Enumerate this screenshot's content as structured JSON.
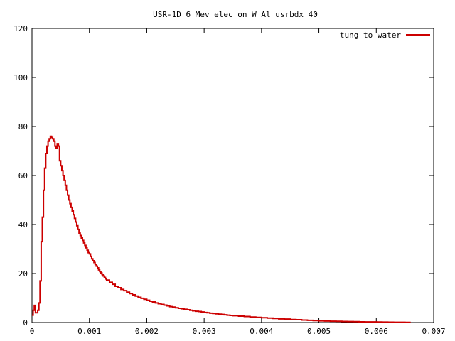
{
  "chart_data": {
    "type": "line",
    "title": "USR-1D 6 Mev elec on W Al usrbdx 40",
    "xlabel": "",
    "ylabel": "",
    "xlim": [
      0,
      0.007
    ],
    "ylim": [
      0,
      120
    ],
    "xticks": [
      0,
      0.001,
      0.002,
      0.003,
      0.004,
      0.005,
      0.006,
      0.007
    ],
    "xtick_labels": [
      "0",
      "0.001",
      "0.002",
      "0.003",
      "0.004",
      "0.005",
      "0.006",
      "0.007"
    ],
    "yticks": [
      0,
      20,
      40,
      60,
      80,
      100,
      120
    ],
    "ytick_labels": [
      "0",
      "20",
      "40",
      "60",
      "80",
      "100",
      "120"
    ],
    "grid": false,
    "legend_position": "top-right",
    "step": true,
    "series": [
      {
        "name": "tung to water",
        "color": "#cc0000",
        "points": [
          [
            0.0,
            3
          ],
          [
            2e-05,
            5
          ],
          [
            4e-05,
            7
          ],
          [
            6e-05,
            4
          ],
          [
            8e-05,
            4
          ],
          [
            0.0001,
            5
          ],
          [
            0.00012,
            8
          ],
          [
            0.00014,
            17
          ],
          [
            0.00016,
            33
          ],
          [
            0.00018,
            43
          ],
          [
            0.0002,
            54
          ],
          [
            0.00022,
            63
          ],
          [
            0.00024,
            69
          ],
          [
            0.00026,
            72
          ],
          [
            0.00028,
            74
          ],
          [
            0.0003,
            75
          ],
          [
            0.00032,
            76
          ],
          [
            0.00034,
            75.5
          ],
          [
            0.00036,
            75
          ],
          [
            0.00038,
            74
          ],
          [
            0.0004,
            72
          ],
          [
            0.00042,
            71
          ],
          [
            0.00044,
            73
          ],
          [
            0.00046,
            72
          ],
          [
            0.00048,
            66
          ],
          [
            0.0005,
            64
          ],
          [
            0.00052,
            62
          ],
          [
            0.00054,
            60
          ],
          [
            0.00056,
            58
          ],
          [
            0.00058,
            56
          ],
          [
            0.0006,
            54
          ],
          [
            0.00062,
            52
          ],
          [
            0.00064,
            50
          ],
          [
            0.00066,
            48.5
          ],
          [
            0.00068,
            47
          ],
          [
            0.0007,
            45.5
          ],
          [
            0.00072,
            44
          ],
          [
            0.00074,
            42.5
          ],
          [
            0.00076,
            41
          ],
          [
            0.00078,
            39.5
          ],
          [
            0.0008,
            38
          ],
          [
            0.00082,
            36.5
          ],
          [
            0.00084,
            35.5
          ],
          [
            0.00086,
            34.5
          ],
          [
            0.00088,
            33.5
          ],
          [
            0.0009,
            32.5
          ],
          [
            0.00092,
            31.5
          ],
          [
            0.00094,
            30.5
          ],
          [
            0.00096,
            29.5
          ],
          [
            0.00098,
            28.5
          ],
          [
            0.001,
            28
          ],
          [
            0.00102,
            27
          ],
          [
            0.00104,
            26
          ],
          [
            0.00106,
            25.2
          ],
          [
            0.00108,
            24.5
          ],
          [
            0.0011,
            23.7
          ],
          [
            0.00112,
            23
          ],
          [
            0.00114,
            22.3
          ],
          [
            0.00116,
            21.5
          ],
          [
            0.00118,
            20.8
          ],
          [
            0.0012,
            20.2
          ],
          [
            0.00122,
            19.6
          ],
          [
            0.00124,
            19
          ],
          [
            0.00126,
            18.4
          ],
          [
            0.00128,
            17.8
          ],
          [
            0.0013,
            17.3
          ],
          [
            0.00135,
            16.4
          ],
          [
            0.0014,
            15.6
          ],
          [
            0.00145,
            14.8
          ],
          [
            0.0015,
            14.2
          ],
          [
            0.00155,
            13.5
          ],
          [
            0.0016,
            13
          ],
          [
            0.00165,
            12.4
          ],
          [
            0.0017,
            11.8
          ],
          [
            0.00175,
            11.3
          ],
          [
            0.0018,
            10.8
          ],
          [
            0.00185,
            10.3
          ],
          [
            0.0019,
            9.9
          ],
          [
            0.00195,
            9.5
          ],
          [
            0.002,
            9.1
          ],
          [
            0.00205,
            8.7
          ],
          [
            0.0021,
            8.4
          ],
          [
            0.00215,
            8.0
          ],
          [
            0.0022,
            7.7
          ],
          [
            0.00225,
            7.4
          ],
          [
            0.0023,
            7.1
          ],
          [
            0.00235,
            6.8
          ],
          [
            0.0024,
            6.5
          ],
          [
            0.00245,
            6.3
          ],
          [
            0.0025,
            6.0
          ],
          [
            0.00255,
            5.8
          ],
          [
            0.0026,
            5.6
          ],
          [
            0.00265,
            5.4
          ],
          [
            0.0027,
            5.2
          ],
          [
            0.00275,
            5.0
          ],
          [
            0.0028,
            4.8
          ],
          [
            0.00285,
            4.6
          ],
          [
            0.0029,
            4.5
          ],
          [
            0.00295,
            4.3
          ],
          [
            0.003,
            4.1
          ],
          [
            0.00305,
            4.0
          ],
          [
            0.0031,
            3.8
          ],
          [
            0.00315,
            3.7
          ],
          [
            0.0032,
            3.55
          ],
          [
            0.00325,
            3.4
          ],
          [
            0.0033,
            3.3
          ],
          [
            0.00335,
            3.15
          ],
          [
            0.0034,
            3.0
          ],
          [
            0.00345,
            2.9
          ],
          [
            0.0035,
            2.8
          ],
          [
            0.0036,
            2.6
          ],
          [
            0.0037,
            2.45
          ],
          [
            0.0038,
            2.25
          ],
          [
            0.0039,
            2.1
          ],
          [
            0.004,
            1.95
          ],
          [
            0.0041,
            1.8
          ],
          [
            0.0042,
            1.65
          ],
          [
            0.0043,
            1.5
          ],
          [
            0.0044,
            1.4
          ],
          [
            0.0045,
            1.25
          ],
          [
            0.0046,
            1.15
          ],
          [
            0.0047,
            1.0
          ],
          [
            0.0048,
            0.9
          ],
          [
            0.0049,
            0.8
          ],
          [
            0.005,
            0.7
          ],
          [
            0.0051,
            0.6
          ],
          [
            0.0052,
            0.55
          ],
          [
            0.0053,
            0.5
          ],
          [
            0.0054,
            0.45
          ],
          [
            0.0055,
            0.4
          ],
          [
            0.0056,
            0.35
          ],
          [
            0.0057,
            0.3
          ],
          [
            0.0058,
            0.27
          ],
          [
            0.0059,
            0.24
          ],
          [
            0.006,
            0.2
          ],
          [
            0.0061,
            0.17
          ],
          [
            0.0062,
            0.14
          ],
          [
            0.0063,
            0.12
          ],
          [
            0.0064,
            0.1
          ],
          [
            0.0065,
            0.08
          ]
        ]
      }
    ]
  }
}
